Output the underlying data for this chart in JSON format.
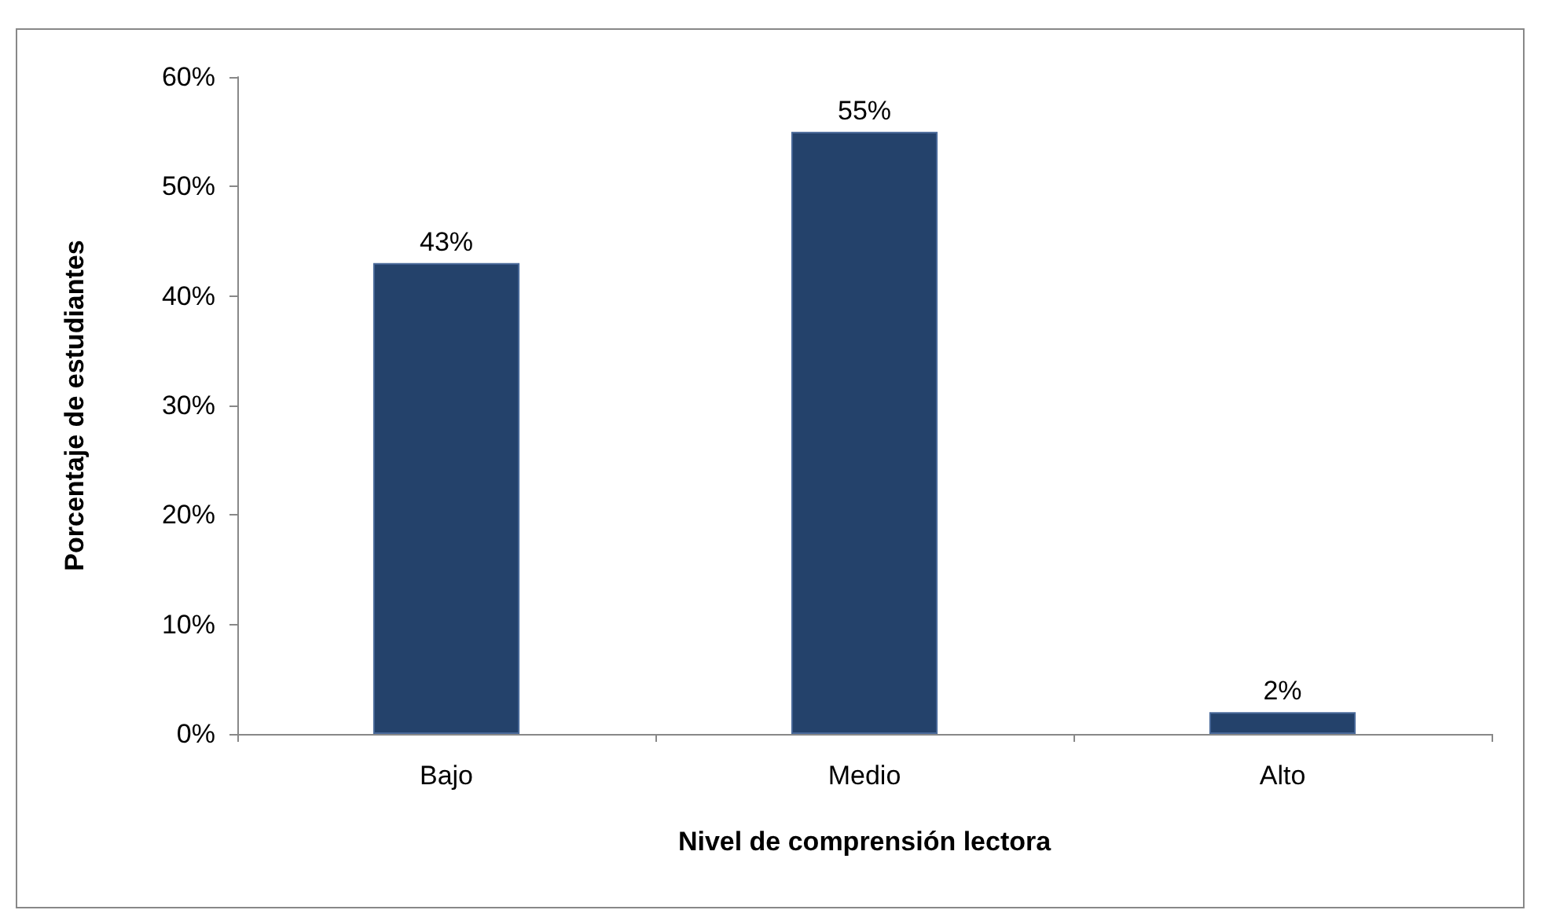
{
  "chart_data": {
    "type": "bar",
    "xlabel": "Nivel de comprensión lectora",
    "ylabel": "Porcentaje de estudiantes",
    "categories": [
      "Bajo",
      "Medio",
      "Alto"
    ],
    "values": [
      43,
      55,
      2
    ],
    "value_labels": [
      "43%",
      "55%",
      "2%"
    ],
    "color": "#24426b",
    "ylim": [
      0,
      60
    ],
    "yticks": [
      {
        "value": 0,
        "label": "0%"
      },
      {
        "value": 10,
        "label": "10%"
      },
      {
        "value": 20,
        "label": "20%"
      },
      {
        "value": 30,
        "label": "30%"
      },
      {
        "value": 40,
        "label": "40%"
      },
      {
        "value": 50,
        "label": "50%"
      },
      {
        "value": 60,
        "label": "60%"
      }
    ],
    "grid": false
  }
}
